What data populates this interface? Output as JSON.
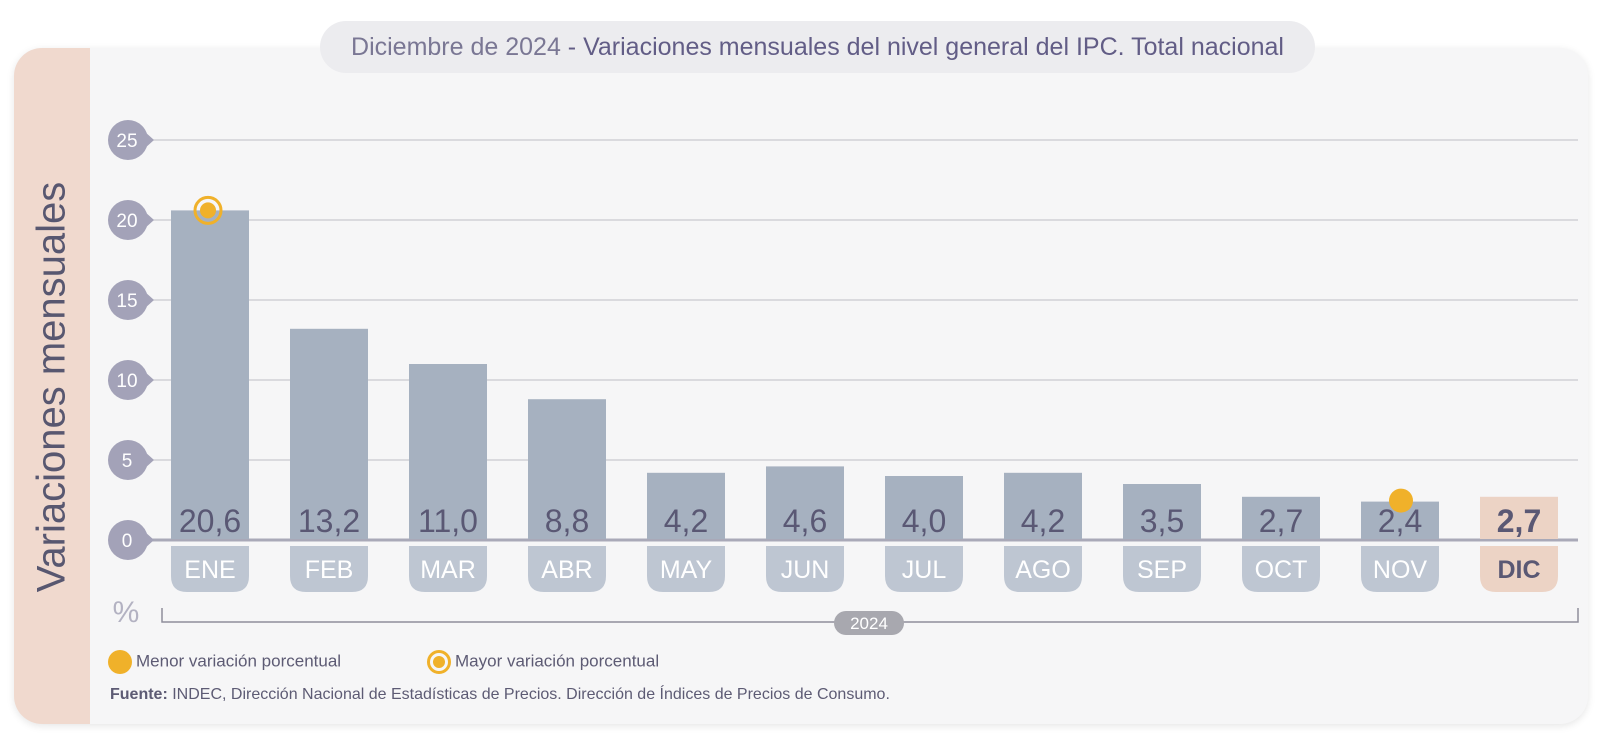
{
  "title": {
    "prefix": "Diciembre de 2024",
    "separator": " - ",
    "main": "Variaciones mensuales del nivel general del IPC. Total nacional"
  },
  "side_title": "Variaciones mensuales",
  "unit": "%",
  "year_label": "2024",
  "legend": {
    "min_label": "Menor variación porcentual",
    "max_label": "Mayor variación porcentual"
  },
  "source": {
    "label": "Fuente:",
    "text": "INDEC, Dirección Nacional de Estadísticas de Precios. Dirección de Índices de Precios de Consumo."
  },
  "colors": {
    "bar": "#a6b1c0",
    "bar_highlight": "#ecd3c5",
    "month_pill": "#bec6d2",
    "month_pill_highlight": "#ecd3c5",
    "axis_pill": "#a3a2b8",
    "marker": "#f0b12a",
    "value_text": "#5a5874",
    "side_band": "#f0d9ce"
  },
  "chart_data": {
    "type": "bar",
    "categories": [
      "ENE",
      "FEB",
      "MAR",
      "ABR",
      "MAY",
      "JUN",
      "JUL",
      "AGO",
      "SEP",
      "OCT",
      "NOV",
      "DIC"
    ],
    "values": [
      20.6,
      13.2,
      11.0,
      8.8,
      4.2,
      4.6,
      4.0,
      4.2,
      3.5,
      2.7,
      2.4,
      2.7
    ],
    "value_labels": [
      "20,6",
      "13,2",
      "11,0",
      "8,8",
      "4,2",
      "4,6",
      "4,0",
      "4,2",
      "3,5",
      "2,7",
      "2,4",
      "2,7"
    ],
    "ylim": [
      0,
      25
    ],
    "yticks": [
      0,
      5,
      10,
      15,
      20,
      25
    ],
    "ylabel": "Variaciones mensuales",
    "unit": "%",
    "highlight_category": "DIC",
    "max_marker_category": "ENE",
    "min_marker_category": "NOV",
    "grid": true
  }
}
